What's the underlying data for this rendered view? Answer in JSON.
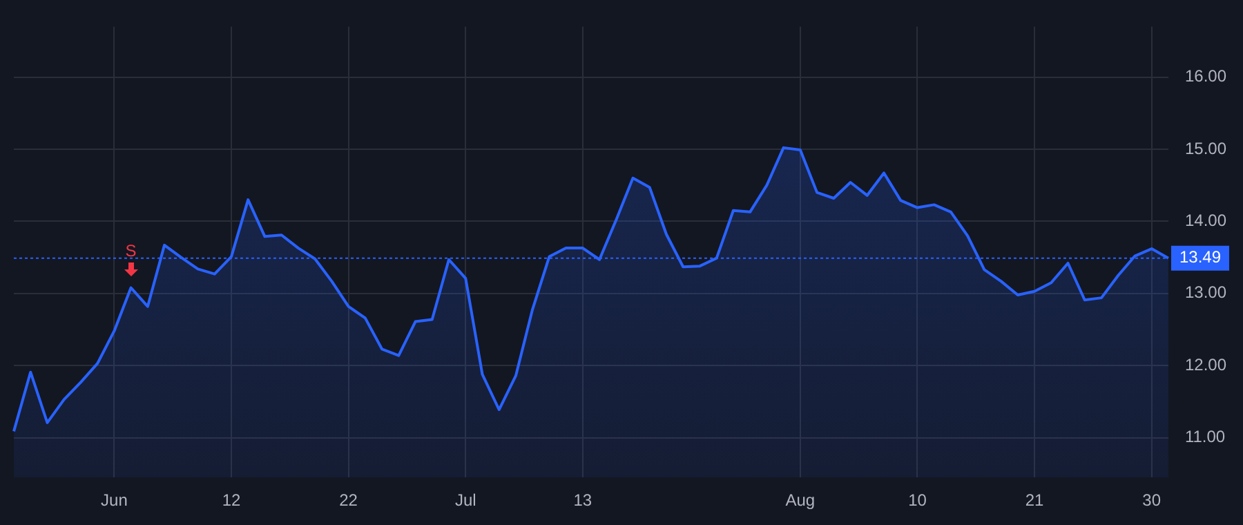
{
  "chart_data": {
    "type": "area",
    "categories": [
      null,
      null,
      null,
      null,
      null,
      null,
      "Jun",
      null,
      null,
      null,
      null,
      null,
      null,
      "12",
      null,
      null,
      null,
      null,
      null,
      null,
      "22",
      null,
      null,
      null,
      null,
      null,
      null,
      "Jul",
      null,
      null,
      null,
      null,
      null,
      null,
      "13",
      null,
      null,
      null,
      null,
      null,
      null,
      null,
      null,
      null,
      null,
      null,
      null,
      "Aug",
      null,
      null,
      null,
      null,
      null,
      null,
      "10",
      null,
      null,
      null,
      null,
      null,
      null,
      "21",
      null,
      null,
      null,
      null,
      null,
      null,
      "30",
      null
    ],
    "series": [
      {
        "color": "#2962ff",
        "values": [
          11.09,
          11.91,
          11.21,
          11.53,
          11.77,
          12.03,
          12.48,
          13.08,
          12.82,
          13.67,
          13.5,
          13.34,
          13.27,
          13.51,
          14.3,
          13.79,
          13.81,
          13.63,
          13.48,
          13.17,
          12.82,
          12.66,
          12.23,
          12.14,
          12.61,
          12.64,
          13.47,
          13.21,
          11.88,
          11.39,
          11.86,
          12.78,
          13.51,
          13.63,
          13.63,
          13.47,
          14.02,
          14.6,
          14.47,
          13.82,
          13.37,
          13.38,
          13.49,
          14.15,
          14.13,
          14.5,
          15.02,
          14.99,
          14.4,
          14.32,
          14.54,
          14.36,
          14.67,
          14.29,
          14.19,
          14.23,
          14.13,
          13.8,
          13.33,
          13.17,
          12.98,
          13.03,
          13.15,
          13.42,
          12.91,
          12.94,
          13.25,
          13.52,
          13.62,
          13.49
        ]
      }
    ],
    "ylim": [
      10.45,
      16.7
    ],
    "yticks": [
      {
        "value": 11,
        "label": "11.00"
      },
      {
        "value": 12,
        "label": "12.00"
      },
      {
        "value": 13,
        "label": "13.00"
      },
      {
        "value": 14,
        "label": "14.00"
      },
      {
        "value": 15,
        "label": "15.00"
      },
      {
        "value": 16,
        "label": "16.00"
      }
    ],
    "ref_lines": [
      {
        "axis": "y",
        "value": 13.49,
        "label": "13.49",
        "color": "#2962ff",
        "line_style": "dotted"
      }
    ],
    "annotations": [
      {
        "text": "S",
        "y": 13.08
      }
    ],
    "grid": true,
    "legend": false,
    "marker": "none",
    "line_style": "solid"
  }
}
